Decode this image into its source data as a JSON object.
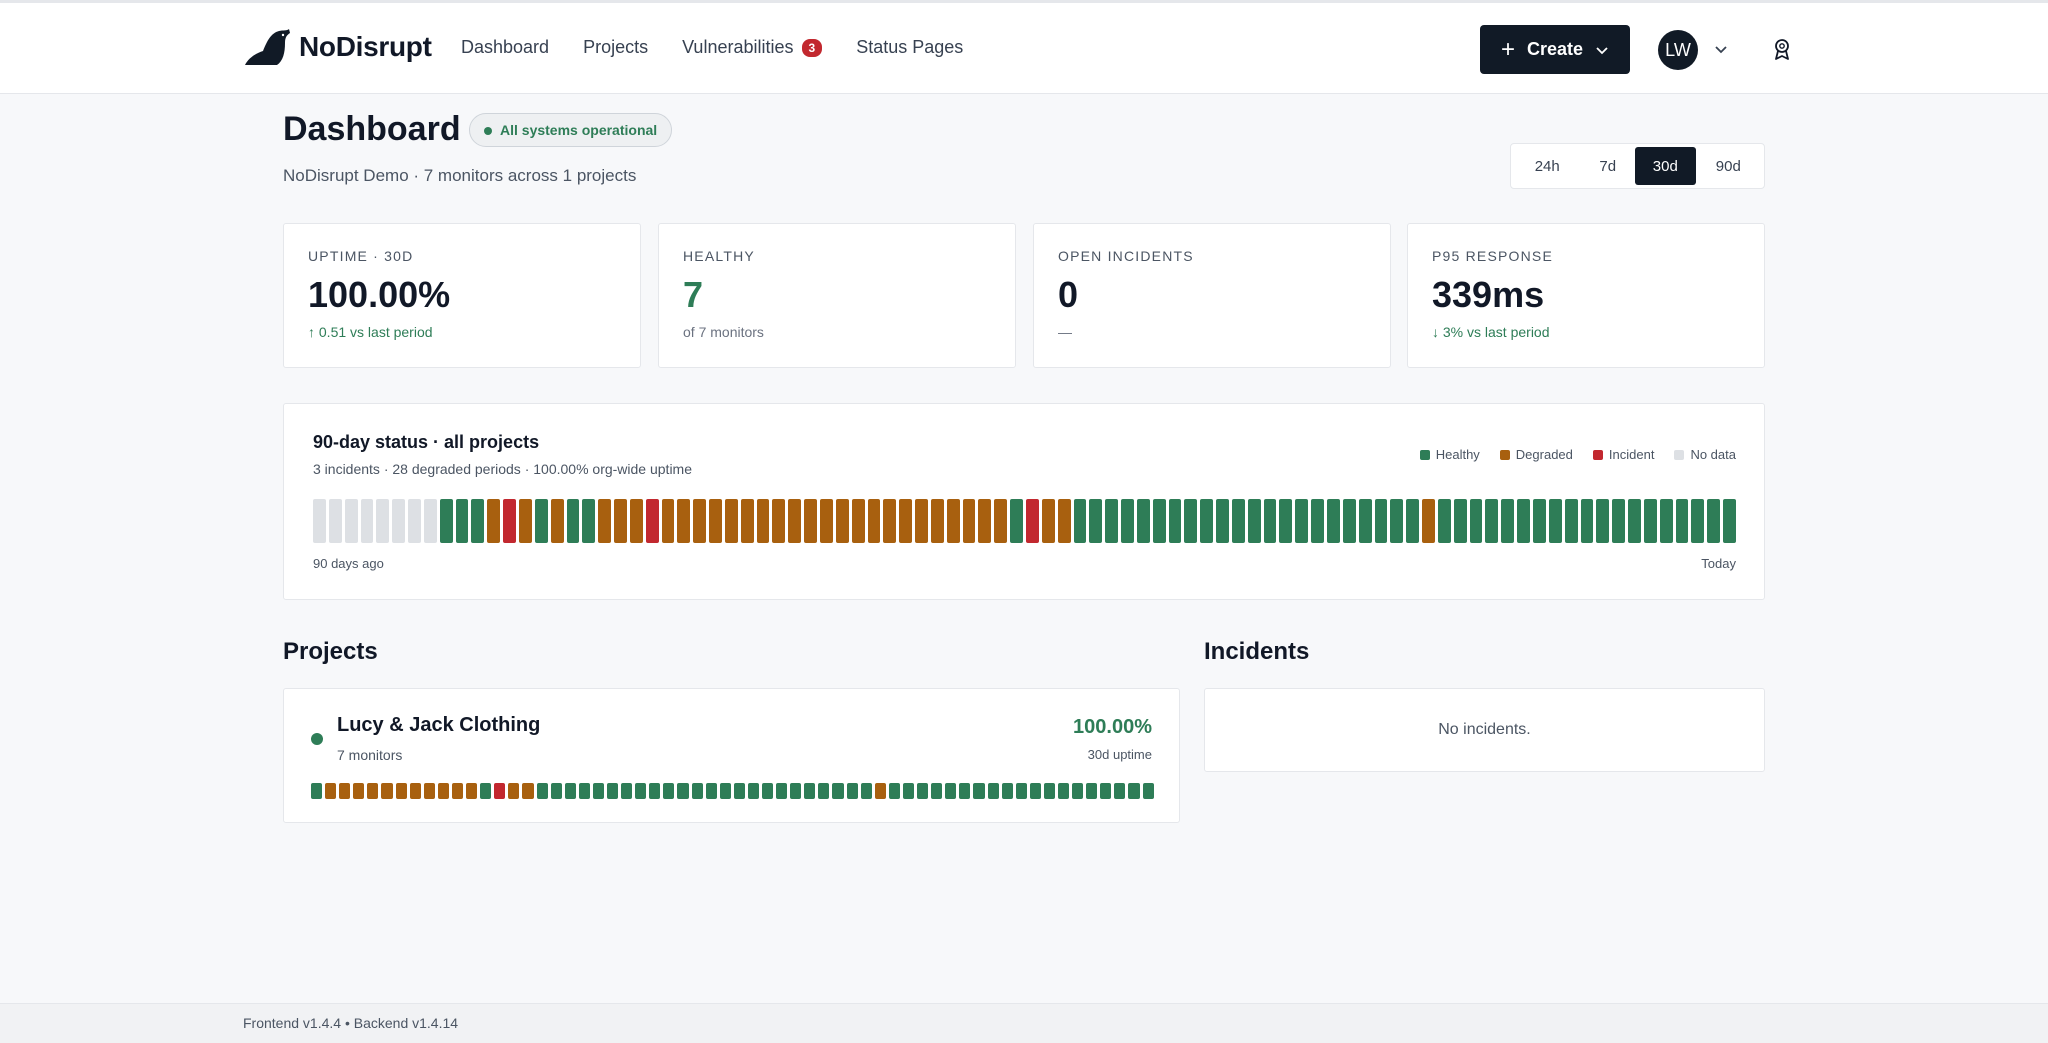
{
  "brand": {
    "name": "NoDisrupt"
  },
  "nav": {
    "items": [
      {
        "label": "Dashboard"
      },
      {
        "label": "Projects"
      },
      {
        "label": "Vulnerabilities",
        "badge": "3"
      },
      {
        "label": "Status Pages"
      }
    ]
  },
  "header_actions": {
    "create_label": "Create",
    "avatar_initials": "LW"
  },
  "page": {
    "title": "Dashboard",
    "status_pill": "All systems operational",
    "subtitle": "NoDisrupt Demo · 7 monitors across 1 projects",
    "ranges": [
      "24h",
      "7d",
      "30d",
      "90d"
    ],
    "selected_range": "30d"
  },
  "stats": [
    {
      "label": "Uptime · 30d",
      "value": "100.00%",
      "sub": "↑ 0.51 vs last period",
      "value_color": "default",
      "sub_color": "green"
    },
    {
      "label": "Healthy",
      "value": "7",
      "sub": "of 7 monitors",
      "value_color": "green",
      "sub_color": "default"
    },
    {
      "label": "Open incidents",
      "value": "0",
      "sub": "—",
      "value_color": "default",
      "sub_color": "default"
    },
    {
      "label": "P95 response",
      "value": "339ms",
      "sub": "↓ 3% vs last period",
      "value_color": "default",
      "sub_color": "green"
    }
  ],
  "status_overview": {
    "title": "90-day status · all projects",
    "summary": "3 incidents · 28 degraded periods · 100.00% org-wide uptime",
    "legend": [
      {
        "label": "Healthy",
        "color": "#2e7d57"
      },
      {
        "label": "Degraded",
        "color": "#a8600f"
      },
      {
        "label": "Incident",
        "color": "#c2282f"
      },
      {
        "label": "No data",
        "color": "#dde0e4"
      }
    ],
    "start_label": "90 days ago",
    "end_label": "Today",
    "days": "NNNNNNNNHHHDRDHDHHDDDRDDDDDDDDDDDDDDDDDDDDDDHRDDHHHHHHHHHHHHHHHHHHHHHHDHHHHHHHHHHHHHHHHHHH"
  },
  "projects": {
    "title": "Projects",
    "items": [
      {
        "name": "Lucy & Jack Clothing",
        "monitors": "7 monitors",
        "uptime": "100.00%",
        "uptime_label": "30d uptime",
        "days": "HDDDDDDDDDDDHRDDHHHHHHHHHHHHHHHHHHHHHHHHDHHHHHHHHHHHHHHHHHHH"
      }
    ]
  },
  "incidents": {
    "title": "Incidents",
    "empty_text": "No incidents."
  },
  "footer": {
    "text": "Frontend v1.4.4 • Backend v1.4.14"
  },
  "colors": {
    "accent": "#111a26",
    "healthy": "#2e7d57",
    "degraded": "#a8600f",
    "incident": "#c2282f",
    "nodata": "#dde0e4"
  }
}
